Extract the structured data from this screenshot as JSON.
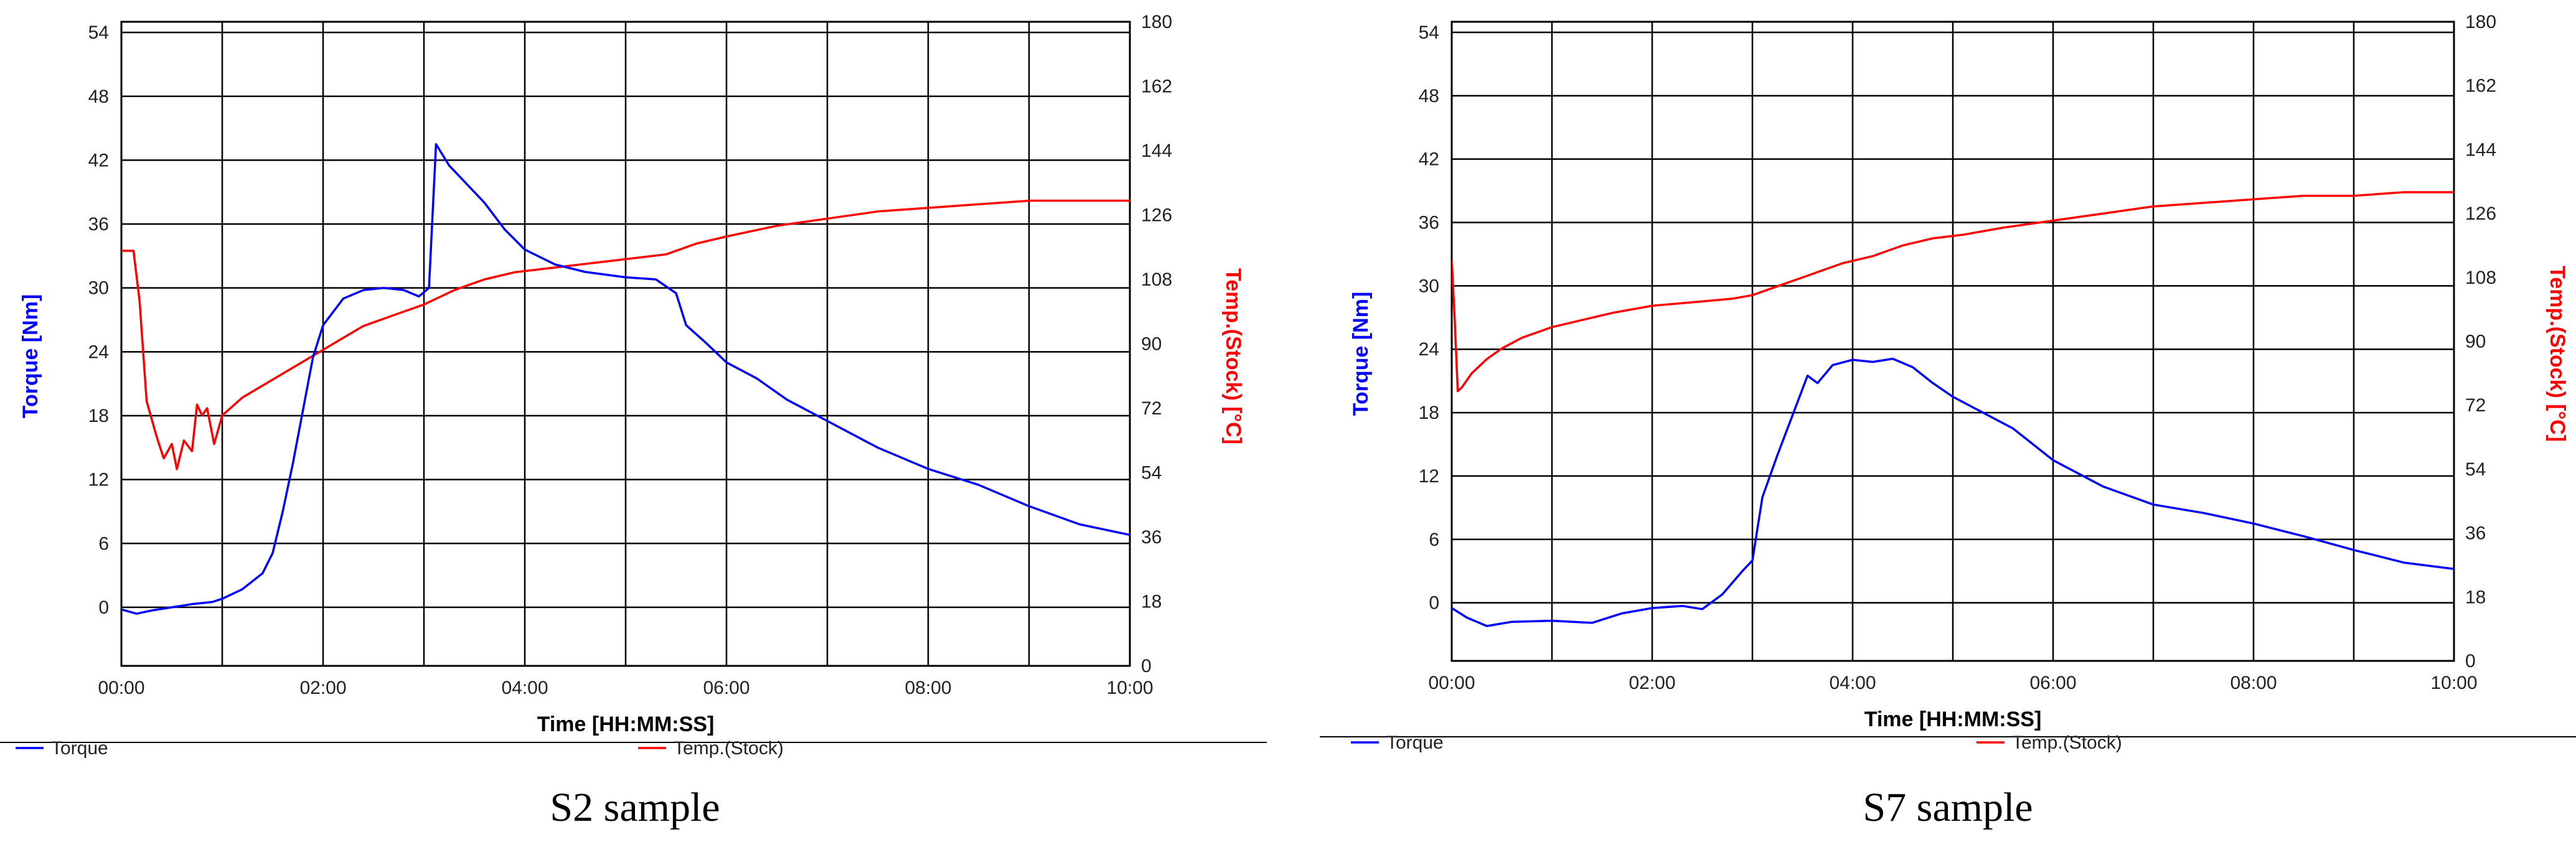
{
  "chart_data": [
    {
      "type": "line",
      "caption": "S2 sample",
      "xlabel": "Time [HH:MM:SS]",
      "ylabel": "Torque [Nm]",
      "y2label": "Temp.(Stock) [°C]",
      "xlim": [
        0,
        10
      ],
      "ylim": [
        -5.5,
        55
      ],
      "y2lim": [
        0,
        180
      ],
      "x_ticks": [
        "00:00",
        "02:00",
        "04:00",
        "06:00",
        "08:00",
        "10:00"
      ],
      "x_tick_values": [
        0,
        2,
        4,
        6,
        8,
        10
      ],
      "y_ticks": [
        0,
        6,
        12,
        18,
        24,
        30,
        36,
        42,
        48,
        54
      ],
      "y2_ticks": [
        0,
        18,
        36,
        54,
        72,
        90,
        108,
        126,
        144,
        162,
        180
      ],
      "grid": true,
      "legend_position": "bottom",
      "series": [
        {
          "name": "Torque",
          "axis": "left",
          "color": "#0000ff",
          "x": [
            0,
            0.15,
            0.3,
            0.5,
            0.7,
            0.9,
            1.0,
            1.2,
            1.4,
            1.5,
            1.6,
            1.7,
            1.8,
            1.9,
            2.0,
            2.2,
            2.4,
            2.6,
            2.8,
            2.95,
            3.05,
            3.12,
            3.25,
            3.4,
            3.6,
            3.8,
            4.0,
            4.3,
            4.6,
            5.0,
            5.3,
            5.5,
            5.6,
            5.8,
            6.0,
            6.3,
            6.6,
            7.0,
            7.5,
            8.0,
            8.5,
            9.0,
            9.5,
            10.0
          ],
          "y": [
            -0.2,
            -0.6,
            -0.3,
            0,
            0.3,
            0.5,
            0.8,
            1.7,
            3.2,
            5.1,
            9,
            13.5,
            18.5,
            23.5,
            26.5,
            29,
            29.8,
            30,
            29.8,
            29.2,
            30,
            43.5,
            41.5,
            40,
            38,
            35.5,
            33.6,
            32.2,
            31.5,
            31,
            30.8,
            29.5,
            26.5,
            24.8,
            23,
            21.5,
            19.5,
            17.5,
            15,
            13,
            11.5,
            9.5,
            7.8,
            6.8
          ]
        },
        {
          "name": "Temp.(Stock)",
          "axis": "right",
          "color": "#ff0000",
          "x": [
            0,
            0.12,
            0.18,
            0.25,
            0.35,
            0.42,
            0.5,
            0.55,
            0.62,
            0.7,
            0.75,
            0.8,
            0.85,
            0.92,
            1.0,
            1.2,
            1.5,
            1.8,
            2.1,
            2.4,
            2.7,
            3.0,
            3.3,
            3.6,
            3.9,
            4.2,
            4.5,
            4.8,
            5.1,
            5.4,
            5.7,
            6.0,
            6.5,
            7.0,
            7.5,
            8.0,
            8.5,
            9.0,
            9.5,
            10.0
          ],
          "y": [
            116,
            116,
            102,
            74,
            64,
            58,
            62,
            55,
            63,
            60,
            73,
            70,
            72,
            62,
            70,
            75,
            80,
            85,
            90,
            95,
            98,
            101,
            105,
            108,
            110,
            111,
            112,
            113,
            114,
            115,
            118,
            120,
            123,
            125,
            127,
            128,
            129,
            130,
            130,
            130
          ]
        }
      ]
    },
    {
      "type": "line",
      "caption": "S7 sample",
      "xlabel": "Time [HH:MM:SS]",
      "ylabel": "Torque [Nm]",
      "y2label": "Temp.(Stock) [°C]",
      "xlim": [
        0,
        10
      ],
      "ylim": [
        -5.5,
        55
      ],
      "y2lim": [
        0,
        180
      ],
      "x_ticks": [
        "00:00",
        "02:00",
        "04:00",
        "06:00",
        "08:00",
        "10:00"
      ],
      "x_tick_values": [
        0,
        2,
        4,
        6,
        8,
        10
      ],
      "y_ticks": [
        0,
        6,
        12,
        18,
        24,
        30,
        36,
        42,
        48,
        54
      ],
      "y2_ticks": [
        0,
        18,
        36,
        54,
        72,
        90,
        108,
        126,
        144,
        162,
        180
      ],
      "grid": true,
      "legend_position": "bottom",
      "series": [
        {
          "name": "Torque",
          "axis": "left",
          "color": "#0000ff",
          "x": [
            0,
            0.15,
            0.35,
            0.6,
            1.0,
            1.4,
            1.7,
            2.0,
            2.3,
            2.5,
            2.7,
            2.9,
            3.0,
            3.1,
            3.25,
            3.45,
            3.55,
            3.65,
            3.8,
            4.0,
            4.2,
            4.4,
            4.6,
            4.8,
            5.0,
            5.3,
            5.6,
            6.0,
            6.5,
            7.0,
            7.5,
            8.0,
            8.5,
            9.0,
            9.5,
            10.0
          ],
          "y": [
            -0.5,
            -1.4,
            -2.2,
            -1.8,
            -1.7,
            -1.9,
            -1,
            -0.5,
            -0.3,
            -0.6,
            0.8,
            3,
            4,
            10,
            14,
            19,
            21.5,
            20.8,
            22.5,
            23,
            22.8,
            23.1,
            22.3,
            20.8,
            19.5,
            18,
            16.5,
            13.5,
            11,
            9.3,
            8.5,
            7.5,
            6.3,
            5,
            3.8,
            3.2
          ]
        },
        {
          "name": "Temp.(Stock)",
          "axis": "right",
          "color": "#ff0000",
          "x": [
            0,
            0.03,
            0.06,
            0.1,
            0.2,
            0.35,
            0.5,
            0.7,
            1.0,
            1.3,
            1.6,
            2.0,
            2.4,
            2.8,
            3.0,
            3.3,
            3.6,
            3.9,
            4.2,
            4.5,
            4.8,
            5.1,
            5.5,
            6.0,
            6.5,
            7.0,
            7.5,
            8.0,
            8.5,
            9.0,
            9.5,
            10.0
          ],
          "y": [
            113,
            96,
            76,
            77,
            81,
            85,
            88,
            91,
            94,
            96,
            98,
            100,
            101,
            102,
            103,
            106,
            109,
            112,
            114,
            117,
            119,
            120,
            122,
            124,
            126,
            128,
            129,
            130,
            131,
            131,
            132,
            132
          ]
        }
      ]
    }
  ]
}
